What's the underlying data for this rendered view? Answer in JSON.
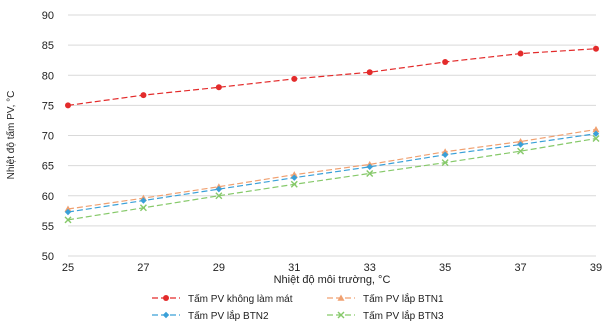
{
  "chart_data": {
    "type": "line",
    "title": "",
    "xlabel": "Nhiệt độ môi trường, °C",
    "ylabel": "Nhiệt độ tấm PV, °C",
    "x": [
      25,
      27,
      29,
      31,
      33,
      35,
      37,
      39
    ],
    "xticks": [
      "25",
      "27",
      "29",
      "31",
      "33",
      "35",
      "37",
      "39"
    ],
    "ylim": [
      50,
      90
    ],
    "yticks": [
      "50",
      "55",
      "60",
      "65",
      "70",
      "75",
      "80",
      "85",
      "90"
    ],
    "grid": true,
    "legend_position": "bottom",
    "series": [
      {
        "name": "Tấm PV không làm mát",
        "values": [
          75.0,
          76.7,
          78.0,
          79.4,
          80.5,
          82.2,
          83.6,
          84.4
        ],
        "color": "#e32b2b",
        "marker": "circle"
      },
      {
        "name": "Tấm PV lắp BTN1",
        "values": [
          57.8,
          59.6,
          61.5,
          63.5,
          65.2,
          67.3,
          69.0,
          71.0
        ],
        "color": "#f0a070",
        "marker": "triangle"
      },
      {
        "name": "Tấm PV lắp BTN2",
        "values": [
          57.3,
          59.2,
          61.1,
          63.0,
          64.8,
          66.8,
          68.5,
          70.3
        ],
        "color": "#3aa0d8",
        "marker": "diamond"
      },
      {
        "name": "Tấm PV lắp BTN3",
        "values": [
          56.0,
          58.0,
          60.0,
          61.9,
          63.7,
          65.5,
          67.4,
          69.5
        ],
        "color": "#86c96a",
        "marker": "x"
      }
    ]
  }
}
